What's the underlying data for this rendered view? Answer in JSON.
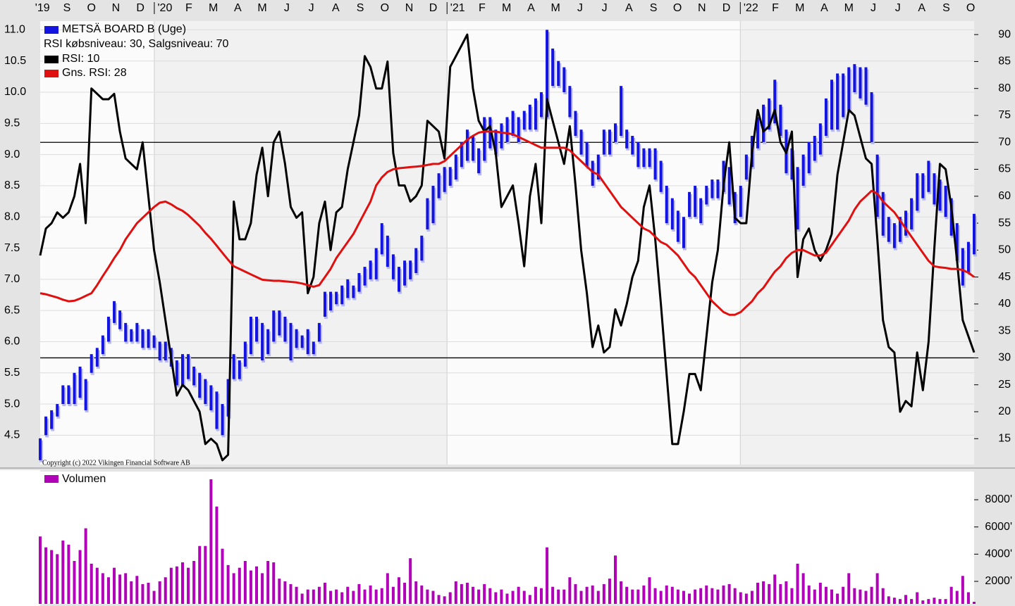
{
  "chart_data": [
    {
      "type": "combo",
      "annotations": [
        "RSI købsniveau: 30, Salgsniveau: 70",
        "Copyright (c) 2022 Vikingen Financial Software AB"
      ],
      "xlim": [
        0,
        164
      ],
      "xticks": [
        {
          "value": 0.4,
          "label": "'19"
        },
        {
          "value": 4.7,
          "label": "S"
        },
        {
          "value": 9.0,
          "label": "O"
        },
        {
          "value": 13.3,
          "label": "N"
        },
        {
          "value": 17.6,
          "label": "D"
        },
        {
          "value": 21.9,
          "label": "'20"
        },
        {
          "value": 26.1,
          "label": "F"
        },
        {
          "value": 30.4,
          "label": "M"
        },
        {
          "value": 34.7,
          "label": "A"
        },
        {
          "value": 39.0,
          "label": "M"
        },
        {
          "value": 43.3,
          "label": "J"
        },
        {
          "value": 47.6,
          "label": "J"
        },
        {
          "value": 51.9,
          "label": "A"
        },
        {
          "value": 56.2,
          "label": "S"
        },
        {
          "value": 60.5,
          "label": "O"
        },
        {
          "value": 64.8,
          "label": "N"
        },
        {
          "value": 69.0,
          "label": "D"
        },
        {
          "value": 73.3,
          "label": "'21"
        },
        {
          "value": 77.6,
          "label": "F"
        },
        {
          "value": 81.9,
          "label": "M"
        },
        {
          "value": 86.2,
          "label": "A"
        },
        {
          "value": 90.5,
          "label": "M"
        },
        {
          "value": 94.8,
          "label": "J"
        },
        {
          "value": 99.1,
          "label": "J"
        },
        {
          "value": 103.4,
          "label": "A"
        },
        {
          "value": 107.7,
          "label": "S"
        },
        {
          "value": 111.9,
          "label": "O"
        },
        {
          "value": 116.2,
          "label": "N"
        },
        {
          "value": 120.5,
          "label": "D"
        },
        {
          "value": 124.8,
          "label": "'22"
        },
        {
          "value": 129.1,
          "label": "F"
        },
        {
          "value": 133.4,
          "label": "M"
        },
        {
          "value": 137.7,
          "label": "A"
        },
        {
          "value": 142.0,
          "label": "M"
        },
        {
          "value": 146.3,
          "label": "J"
        },
        {
          "value": 150.6,
          "label": "J"
        },
        {
          "value": 154.8,
          "label": "A"
        },
        {
          "value": 159.1,
          "label": "S"
        },
        {
          "value": 163.4,
          "label": "O"
        }
      ],
      "ylim": [
        4.03,
        11.14
      ],
      "yticks": [
        4.5,
        {
          "value": 5,
          "label": "5.0"
        },
        5.5,
        {
          "value": 6,
          "label": "6.0"
        },
        6.5,
        {
          "value": 7,
          "label": "7.0"
        },
        7.5,
        {
          "value": 8,
          "label": "8.0"
        },
        8.5,
        {
          "value": 9,
          "label": "9.0"
        },
        9.5,
        {
          "value": 10,
          "label": "10.0"
        },
        10.5,
        {
          "value": 11,
          "label": "11.0"
        }
      ],
      "y2lim": [
        10.2,
        92.5
      ],
      "y2ticks": [
        15,
        20,
        25,
        30,
        35,
        40,
        45,
        50,
        55,
        60,
        65,
        70,
        75,
        80,
        85,
        90
      ],
      "grid": true,
      "hlines": [
        {
          "value": 30,
          "axis": "y2"
        },
        {
          "value": 70,
          "axis": "y2"
        }
      ],
      "series": [
        {
          "name": "METSÄ BOARD B (Uge)",
          "type": "hilo",
          "color": "#1414e0",
          "high": [
            4.45,
            4.8,
            4.9,
            5.0,
            5.3,
            5.3,
            5.5,
            5.6,
            5.4,
            5.8,
            5.9,
            6.1,
            6.4,
            6.65,
            6.5,
            6.3,
            6.2,
            6.3,
            6.2,
            6.2,
            6.1,
            6.0,
            6.0,
            5.9,
            5.7,
            5.8,
            5.8,
            5.6,
            5.5,
            5.4,
            5.3,
            5.2,
            5.0,
            5.4,
            5.8,
            5.7,
            6.0,
            6.4,
            6.4,
            6.3,
            6.2,
            6.5,
            6.5,
            6.4,
            6.3,
            6.2,
            6.1,
            6.2,
            6.0,
            6.3,
            6.8,
            6.8,
            6.8,
            6.9,
            7.0,
            6.9,
            7.1,
            7.2,
            7.3,
            7.5,
            7.9,
            7.7,
            7.4,
            7.2,
            7.3,
            7.3,
            7.5,
            7.7,
            8.3,
            8.5,
            8.7,
            8.8,
            8.8,
            9.0,
            9.2,
            9.4,
            9.3,
            9.1,
            9.6,
            9.6,
            9.4,
            9.5,
            9.6,
            9.7,
            9.6,
            9.7,
            9.8,
            9.9,
            10.0,
            11.0,
            10.7,
            10.5,
            10.4,
            10.1,
            9.7,
            9.4,
            9.2,
            8.9,
            9.0,
            9.4,
            9.4,
            9.5,
            10.1,
            9.4,
            9.3,
            9.2,
            9.1,
            9.1,
            9.1,
            8.9,
            8.5,
            8.3,
            8.1,
            8.0,
            8.4,
            8.5,
            8.3,
            8.5,
            8.6,
            8.6,
            8.9,
            8.8,
            8.4,
            8.5,
            9.0,
            9.3,
            9.6,
            9.8,
            9.9,
            10.2,
            9.8,
            9.4,
            9.1,
            8.8,
            9.0,
            9.2,
            9.3,
            9.5,
            9.9,
            10.2,
            10.3,
            10.3,
            10.4,
            10.45,
            10.4,
            10.4,
            10.0,
            9.0,
            8.4,
            8.0,
            7.9,
            8.0,
            8.1,
            8.3,
            8.7,
            8.7,
            8.9,
            8.7,
            8.6,
            8.5,
            8.3,
            7.9,
            7.5,
            7.6,
            8.05
          ],
          "low": [
            4.1,
            4.5,
            4.6,
            4.8,
            5.0,
            5.0,
            5.0,
            5.1,
            4.9,
            5.5,
            5.6,
            5.8,
            6.0,
            6.3,
            6.2,
            6.0,
            6.0,
            6.0,
            5.9,
            5.9,
            5.9,
            5.7,
            5.7,
            5.6,
            5.3,
            5.3,
            5.4,
            5.3,
            5.1,
            5.0,
            4.9,
            4.6,
            4.5,
            4.8,
            5.4,
            5.4,
            5.6,
            5.8,
            6.0,
            5.7,
            5.8,
            6.0,
            6.1,
            6.0,
            5.7,
            5.9,
            5.9,
            5.8,
            5.8,
            6.0,
            6.4,
            6.5,
            6.6,
            6.6,
            6.7,
            6.7,
            6.8,
            6.9,
            7.0,
            7.0,
            7.4,
            7.2,
            7.0,
            6.8,
            6.9,
            7.0,
            7.1,
            7.3,
            7.8,
            7.9,
            8.3,
            8.4,
            8.5,
            8.6,
            8.8,
            8.9,
            8.9,
            8.7,
            8.9,
            9.1,
            9.0,
            9.1,
            9.2,
            9.3,
            9.2,
            9.4,
            9.4,
            9.4,
            9.6,
            9.6,
            10.1,
            10.1,
            10.0,
            9.6,
            9.3,
            9.0,
            8.8,
            8.5,
            8.6,
            9.0,
            9.0,
            9.2,
            9.3,
            9.1,
            9.0,
            8.8,
            8.8,
            8.8,
            8.6,
            8.4,
            7.9,
            7.8,
            7.6,
            7.5,
            8.0,
            8.0,
            7.9,
            8.2,
            8.3,
            8.3,
            8.4,
            8.2,
            7.9,
            8.0,
            8.6,
            8.8,
            9.1,
            9.2,
            9.4,
            9.5,
            9.3,
            8.7,
            8.6,
            7.8,
            8.5,
            8.7,
            8.9,
            9.0,
            9.3,
            9.4,
            9.4,
            9.6,
            9.7,
            10.0,
            9.9,
            9.8,
            9.2,
            8.0,
            7.7,
            7.6,
            7.5,
            7.6,
            7.7,
            7.8,
            8.1,
            8.3,
            8.4,
            8.2,
            8.1,
            8.0,
            7.7,
            7.3,
            6.9,
            7.1,
            7.4
          ]
        },
        {
          "name": "RSI: 10",
          "type": "line",
          "color": "#000000",
          "axis": "y2",
          "values": [
            49,
            54,
            55,
            57,
            56,
            57,
            60,
            66,
            55,
            80,
            79,
            78,
            78,
            79,
            72,
            67,
            66,
            65,
            70,
            60,
            50,
            44,
            37,
            30,
            23,
            25,
            24,
            22,
            20,
            14,
            15,
            14,
            11,
            12,
            59,
            52,
            52,
            55,
            64,
            69,
            60,
            70,
            72,
            66,
            58,
            56,
            57,
            42,
            45,
            55,
            59,
            50,
            57,
            58,
            65,
            70,
            75,
            86,
            84,
            80,
            80,
            85,
            68,
            62,
            62,
            59,
            60,
            62,
            74,
            73,
            72,
            67,
            84,
            86,
            88,
            90,
            80,
            74,
            72,
            73,
            68,
            58,
            60,
            62,
            55,
            47,
            60,
            66,
            55,
            78,
            74,
            70,
            66,
            73,
            62,
            50,
            42,
            32,
            36,
            31,
            32,
            39,
            36,
            40,
            45,
            48,
            58,
            62,
            52,
            40,
            27,
            14,
            14,
            20,
            27,
            27,
            24,
            34,
            44,
            50,
            62,
            70,
            56,
            55,
            55,
            68,
            76,
            72,
            73,
            76,
            70,
            68,
            72,
            45,
            52,
            54,
            50,
            48,
            50,
            53,
            64,
            70,
            76,
            75,
            71,
            67,
            66,
            52,
            37,
            32,
            31,
            20,
            22,
            21,
            31,
            24,
            33,
            50,
            66,
            65,
            58,
            48,
            37,
            34,
            31
          ]
        },
        {
          "name": "Gns. RSI: 28",
          "type": "line",
          "color": "#e01010",
          "axis": "y2",
          "values": [
            42,
            41.8,
            41.5,
            41.2,
            40.8,
            40.5,
            40.6,
            41,
            41.5,
            42,
            43.5,
            45.2,
            46.8,
            48.5,
            50,
            52,
            53.5,
            55,
            56,
            57,
            58,
            58.8,
            59,
            58.5,
            57.8,
            57.3,
            56.5,
            55.5,
            54.5,
            53.2,
            52.1,
            50.8,
            49.5,
            48.2,
            47,
            46.5,
            46,
            45.5,
            45,
            44.5,
            44.4,
            44.3,
            44.3,
            44.2,
            44.1,
            44,
            43.8,
            43.5,
            43.2,
            43.5,
            45,
            46.5,
            48.5,
            50,
            51.5,
            53,
            55,
            57,
            59,
            62,
            63.5,
            64.5,
            65,
            65.2,
            65.3,
            65.4,
            65.5,
            65.6,
            65.8,
            66,
            66,
            66.5,
            67.5,
            68.5,
            69.5,
            70.5,
            71.2,
            71.8,
            72,
            72,
            72,
            71.8,
            71.7,
            71.5,
            71,
            70.5,
            70,
            69.5,
            69,
            69,
            69,
            69,
            69,
            68.5,
            67.5,
            66.5,
            65.5,
            64.5,
            64,
            62.5,
            61,
            59.5,
            58,
            57,
            56,
            55,
            54,
            53.5,
            52.5,
            51.5,
            51,
            50,
            49,
            47.5,
            46,
            45,
            43.5,
            42,
            40.5,
            39.5,
            38.5,
            38,
            38,
            38.5,
            39.5,
            40.5,
            42,
            43,
            44.5,
            46,
            47,
            48.5,
            49.5,
            50,
            50,
            49.5,
            49,
            49,
            49.5,
            51,
            52.5,
            54,
            55.5,
            57.5,
            59,
            60,
            61,
            60.5,
            59,
            58,
            57,
            55.5,
            54,
            52.5,
            51,
            49.5,
            48,
            47,
            46.8,
            46.7,
            46.5,
            46.5,
            46.3,
            45.8,
            45
          ]
        }
      ]
    },
    {
      "type": "bar",
      "xlim": [
        0,
        164
      ],
      "ylim": [
        345,
        10070
      ],
      "yticks": [
        {
          "value": 2000,
          "label": "2000'"
        },
        {
          "value": 4000,
          "label": "4000'"
        },
        {
          "value": 6000,
          "label": "6000'"
        },
        {
          "value": 8000,
          "label": "8000'"
        }
      ],
      "series": [
        {
          "name": "Volumen",
          "color": "#b000b8",
          "values": [
            5300,
            4500,
            4300,
            4000,
            5000,
            4700,
            3500,
            4300,
            5900,
            3300,
            3000,
            2600,
            2300,
            3000,
            2500,
            2600,
            2000,
            2400,
            1800,
            1900,
            1300,
            2000,
            2300,
            3000,
            3100,
            3400,
            3000,
            3500,
            4600,
            4600,
            9500,
            7500,
            4400,
            3200,
            2600,
            3000,
            3500,
            2800,
            3100,
            2600,
            3500,
            3400,
            2200,
            2000,
            1800,
            1600,
            1100,
            1400,
            1400,
            1600,
            1900,
            1300,
            1400,
            1200,
            1600,
            1300,
            1800,
            1400,
            1700,
            1400,
            1500,
            2600,
            1600,
            2300,
            1900,
            3700,
            2000,
            1700,
            1400,
            1300,
            1000,
            900,
            1200,
            2000,
            1800,
            1900,
            1600,
            1400,
            1800,
            1500,
            1200,
            1400,
            1100,
            1300,
            1600,
            1300,
            1000,
            1600,
            1500,
            4500,
            1600,
            1400,
            1400,
            2300,
            1800,
            1300,
            1600,
            1700,
            1300,
            1800,
            2200,
            3900,
            2000,
            1600,
            1400,
            1400,
            1700,
            2300,
            1500,
            1300,
            1700,
            1600,
            1400,
            1300,
            1100,
            1400,
            1500,
            1700,
            1500,
            1400,
            1700,
            1800,
            1500,
            1200,
            1100,
            1300,
            1900,
            2000,
            1800,
            2500,
            1800,
            2000,
            1500,
            3300,
            2600,
            1700,
            1400,
            1900,
            1600,
            1400,
            1100,
            1600,
            2600,
            1500,
            1400,
            1300,
            1600,
            2600,
            1500,
            900,
            800,
            700,
            1000,
            700,
            1200,
            600,
            700,
            800,
            700,
            700,
            1600,
            1300,
            2400,
            1200,
            500
          ]
        }
      ]
    }
  ]
}
